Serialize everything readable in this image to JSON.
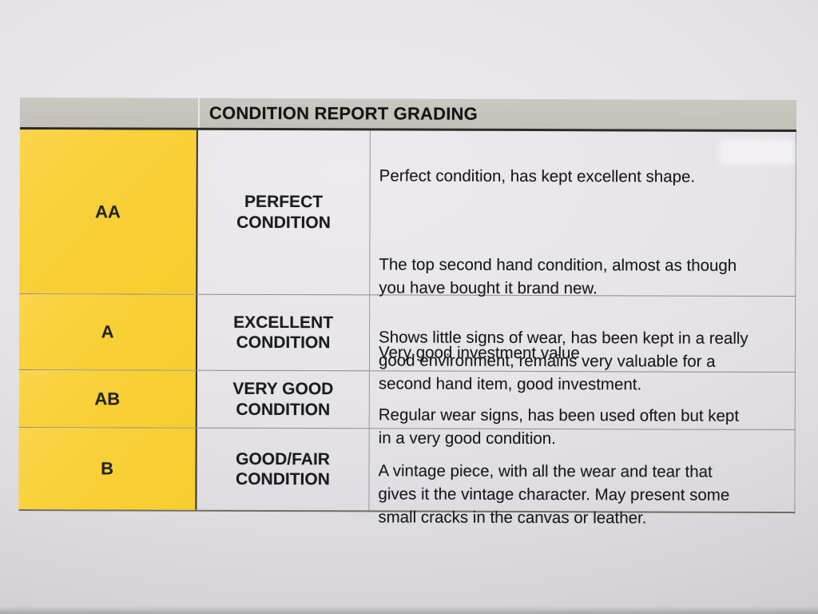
{
  "document": {
    "title": "CONDITION REPORT GRADING",
    "rows": [
      {
        "grade": "AA",
        "label": "PERFECT\nCONDITION",
        "paragraphs": [
          "Perfect condition, has kept excellent shape.",
          "The top second hand condition, almost as though\nyou have bought it brand new.",
          "Very good investment value"
        ]
      },
      {
        "grade": "A",
        "label": "EXCELLENT\nCONDITION",
        "paragraphs": [
          "Shows little signs of wear, has been kept in a really\ngood environment, remains very valuable for a\nsecond hand item, good investment."
        ]
      },
      {
        "grade": "AB",
        "label": "VERY GOOD\nCONDITION",
        "paragraphs": [
          "Regular wear signs, has been used often but kept\nin a very good condition."
        ]
      },
      {
        "grade": "B",
        "label": "GOOD/FAIR\nCONDITION",
        "paragraphs": [
          "A vintage piece, with all the wear and tear that\ngives it the vintage character. May present some\nsmall cracks in the canvas or leather."
        ]
      }
    ],
    "colors": {
      "grade_column_yellow": "#F8D035",
      "header_gray": "#C7C4BD",
      "paper_gray": "#DEDCDE",
      "text": "#1A1A1C"
    }
  }
}
